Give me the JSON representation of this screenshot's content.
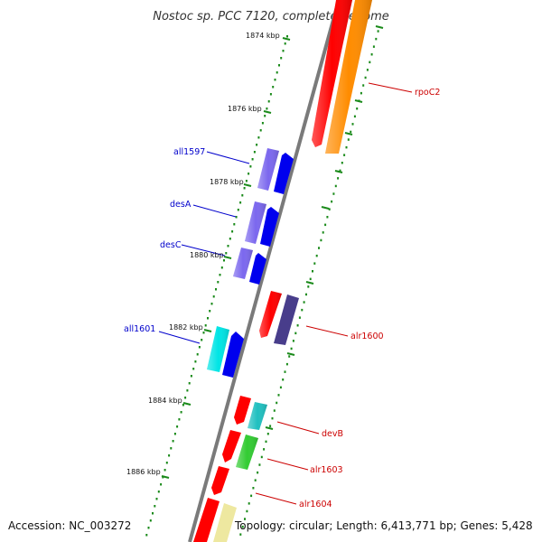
{
  "title": "Nostoc sp. PCC 7120, complete genome",
  "footer": {
    "accession": "Accession: NC_003272",
    "info": "Topology: circular; Length: 6,413,771 bp; Genes: 5,428"
  },
  "colors": {
    "backbone": "#777777",
    "tick_major": "#1a8a1a",
    "tick_minor": "#1a8a1a",
    "forward_label": "#cc0000",
    "reverse_label": "#0000cc"
  },
  "ticks": [
    {
      "label": "1874 kbp",
      "kbp": 1874
    },
    {
      "label": "1876 kbp",
      "kbp": 1876
    },
    {
      "label": "1878 kbp",
      "kbp": 1878
    },
    {
      "label": "1880 kbp",
      "kbp": 1880
    },
    {
      "label": "1882 kbp",
      "kbp": 1882
    },
    {
      "label": "1884 kbp",
      "kbp": 1884
    },
    {
      "label": "1886 kbp",
      "kbp": 1886
    }
  ],
  "genes": [
    {
      "name": "rpoC2",
      "strand": "forward",
      "color": "#ff8c00",
      "labeled": true
    },
    {
      "name": "all1597",
      "strand": "reverse",
      "color": "#7b68ee",
      "labeled": true
    },
    {
      "name": "desA",
      "strand": "reverse",
      "color": "#7b68ee",
      "labeled": true
    },
    {
      "name": "desC",
      "strand": "reverse",
      "color": "#7b68ee",
      "labeled": true
    },
    {
      "name": "alr1600",
      "strand": "forward",
      "color": "#483d8b",
      "labeled": true
    },
    {
      "name": "all1601",
      "strand": "reverse",
      "color": "#00e5e5",
      "labeled": true
    },
    {
      "name": "devB",
      "strand": "forward",
      "color": "#20c0c0",
      "labeled": true
    },
    {
      "name": "alr1603",
      "strand": "forward",
      "color": "#33cc33",
      "labeled": true
    },
    {
      "name": "alr1604",
      "strand": "forward",
      "color": "#ff0000",
      "labeled": true
    },
    {
      "name": "",
      "strand": "forward",
      "color": "#eee8a0",
      "labeled": false
    }
  ]
}
